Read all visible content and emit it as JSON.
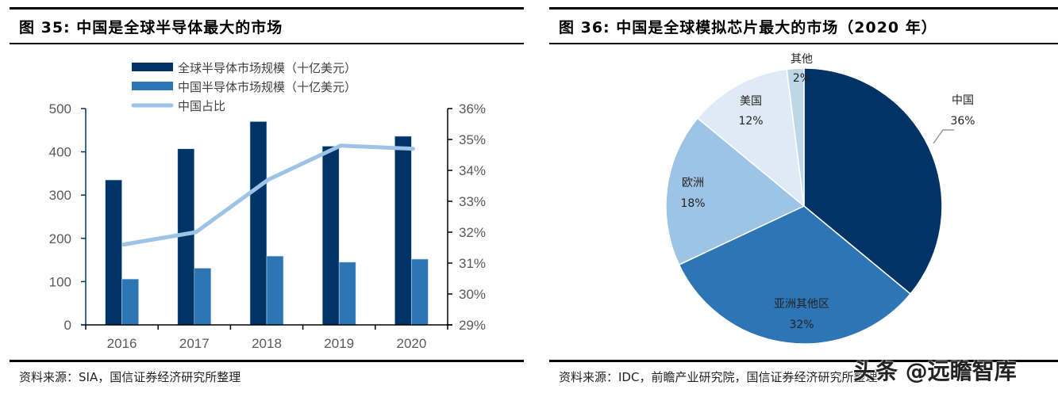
{
  "fig35": {
    "title": "图 35:  中国是全球半导体最大的市场",
    "source": "资料来源：SIA，国信证券经济研究所整理"
  },
  "fig36": {
    "title": "图 36:  中国是全球模拟芯片最大的市场（2020 年）",
    "source": "资料来源：IDC，前瞻产业研究院，国信证券经济研究所整理"
  },
  "watermark": "头条 @远瞻智库",
  "colors": {
    "dark_navy": "#003366",
    "mid_blue": "#2E75B6",
    "light_blue": "#9DC3E6",
    "pale_blue": "#DEEBF7",
    "grey_blue": "#BDD7E7"
  },
  "chart_data": [
    {
      "type": "bar",
      "title": "中国是全球半导体最大的市场",
      "categories": [
        "2016",
        "2017",
        "2018",
        "2019",
        "2020"
      ],
      "series": [
        {
          "name": "全球半导体市场规模（十亿美元）",
          "type": "bar",
          "axis": "left",
          "color": "#003366",
          "values": [
            335,
            407,
            470,
            413,
            436
          ]
        },
        {
          "name": "中国半导体市场规模（十亿美元）",
          "type": "bar",
          "axis": "left",
          "color": "#2E75B6",
          "values": [
            106,
            131,
            159,
            145,
            152
          ]
        },
        {
          "name": "中国占比",
          "type": "line",
          "axis": "right",
          "color": "#9DC3E6",
          "values": [
            31.6,
            32.0,
            33.7,
            34.8,
            34.7
          ]
        }
      ],
      "y_left": {
        "min": 0,
        "max": 500,
        "ticks": [
          "0",
          "100",
          "200",
          "300",
          "400",
          "500"
        ]
      },
      "y_right": {
        "min": 29,
        "max": 36,
        "ticks": [
          "29%",
          "30%",
          "31%",
          "32%",
          "33%",
          "34%",
          "35%",
          "36%"
        ]
      },
      "xlabel": "",
      "ylabel": "",
      "grid": false,
      "legend": "top"
    },
    {
      "type": "pie",
      "title": "中国是全球模拟芯片最大的市场（2020 年）",
      "slices": [
        {
          "label": "中国",
          "value": 36,
          "display": "36%",
          "color": "#003366"
        },
        {
          "label": "亚洲其他区",
          "value": 32,
          "display": "32%",
          "color": "#2E75B6"
        },
        {
          "label": "欧洲",
          "value": 18,
          "display": "18%",
          "color": "#9DC3E6"
        },
        {
          "label": "美国",
          "value": 12,
          "display": "12%",
          "color": "#DEEBF7"
        },
        {
          "label": "其他",
          "value": 2,
          "display": "2%",
          "color": "#BDD7E7"
        }
      ],
      "start": "12 o'clock, clockwise",
      "legend": "none"
    }
  ]
}
